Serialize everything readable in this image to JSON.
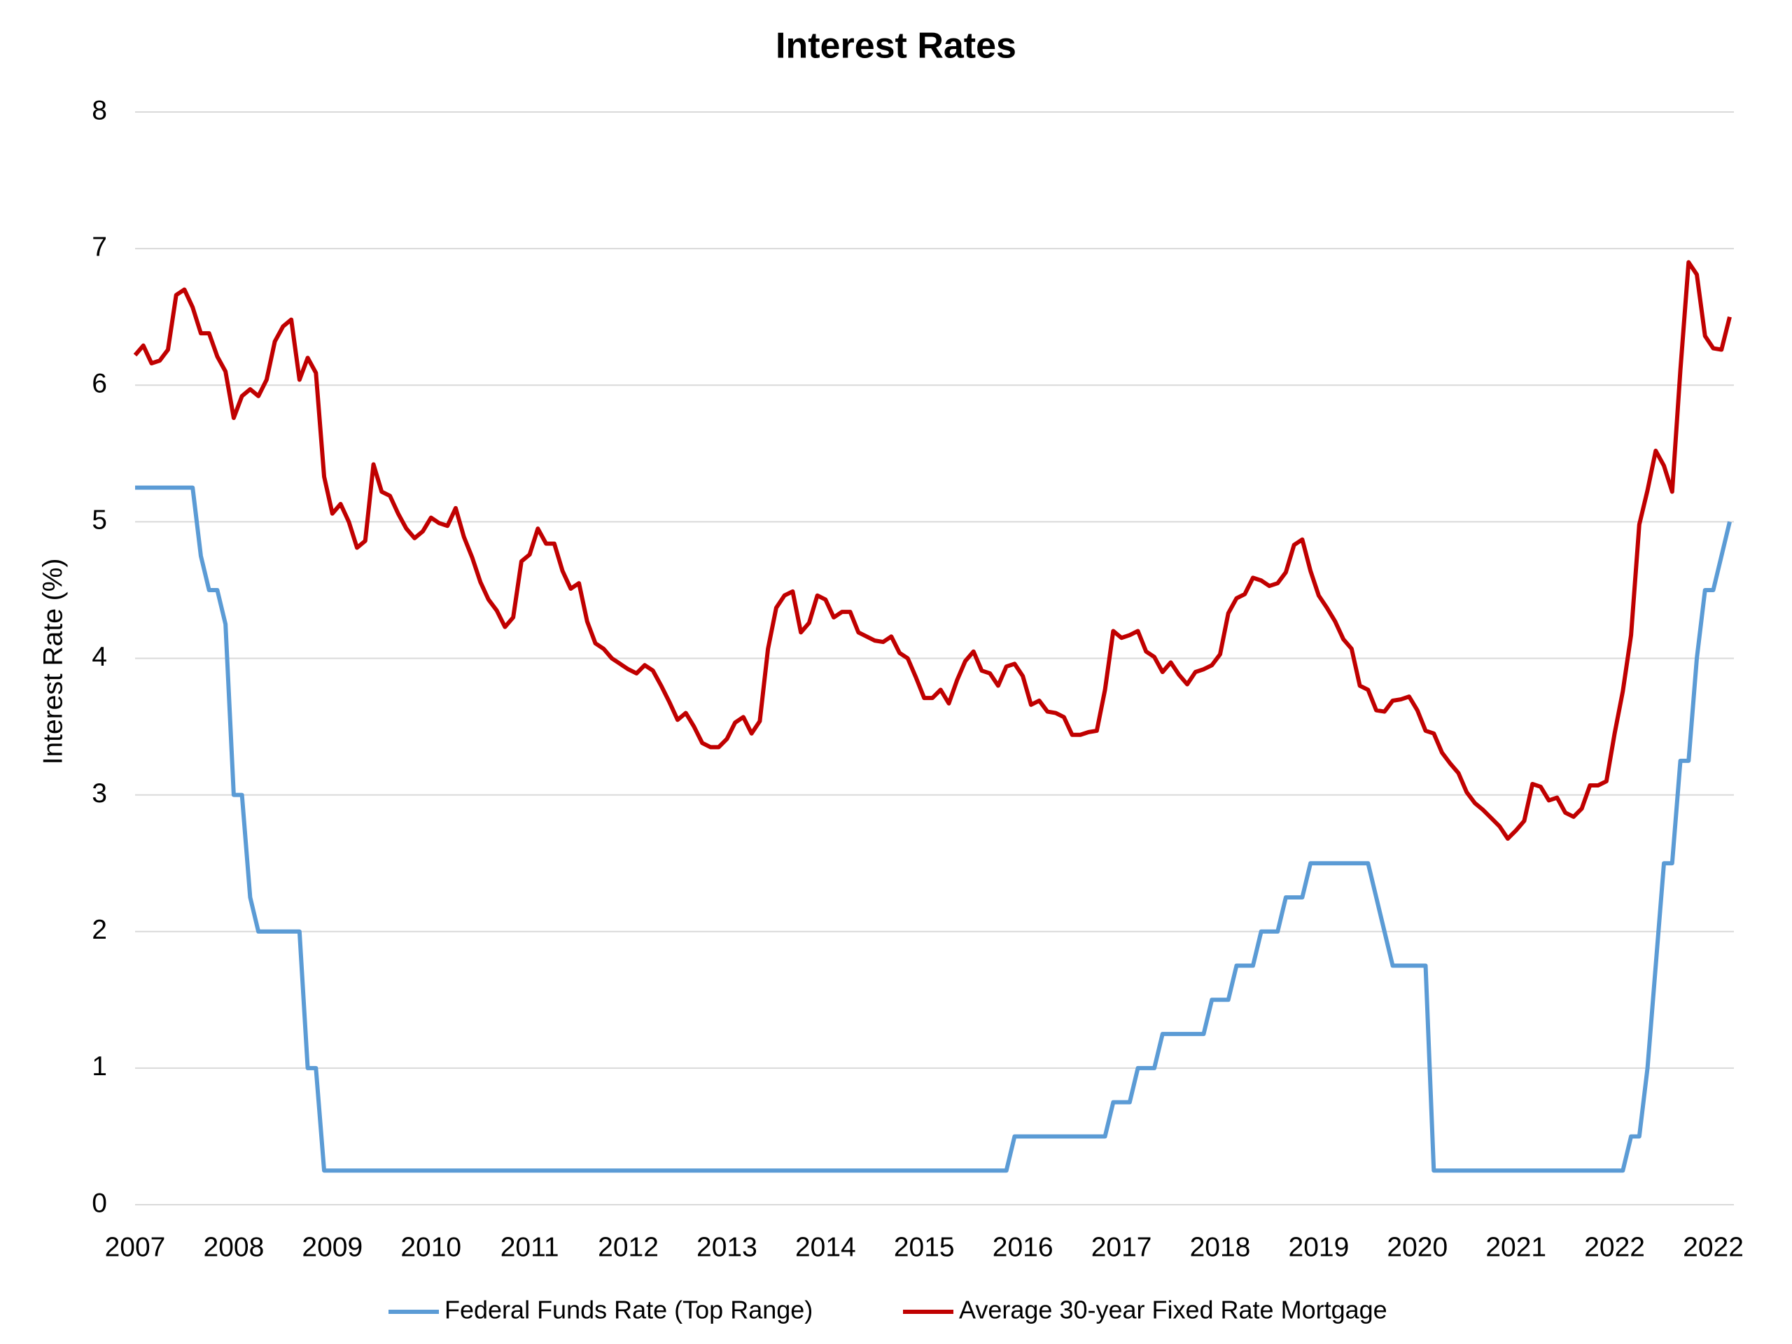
{
  "chart_data": {
    "type": "line",
    "title": "Interest Rates",
    "y_label": "Interest Rate (%)",
    "categories": [
      "2007",
      null,
      null,
      null,
      null,
      null,
      null,
      null,
      null,
      null,
      null,
      null,
      "2008",
      null,
      null,
      null,
      null,
      null,
      null,
      null,
      null,
      null,
      null,
      null,
      "2009",
      null,
      null,
      null,
      null,
      null,
      null,
      null,
      null,
      null,
      null,
      null,
      "2010",
      null,
      null,
      null,
      null,
      null,
      null,
      null,
      null,
      null,
      null,
      null,
      "2011",
      null,
      null,
      null,
      null,
      null,
      null,
      null,
      null,
      null,
      null,
      null,
      "2012",
      null,
      null,
      null,
      null,
      null,
      null,
      null,
      null,
      null,
      null,
      null,
      "2013",
      null,
      null,
      null,
      null,
      null,
      null,
      null,
      null,
      null,
      null,
      null,
      "2014",
      null,
      null,
      null,
      null,
      null,
      null,
      null,
      null,
      null,
      null,
      null,
      "2015",
      null,
      null,
      null,
      null,
      null,
      null,
      null,
      null,
      null,
      null,
      null,
      "2016",
      null,
      null,
      null,
      null,
      null,
      null,
      null,
      null,
      null,
      null,
      null,
      "2017",
      null,
      null,
      null,
      null,
      null,
      null,
      null,
      null,
      null,
      null,
      null,
      "2018",
      null,
      null,
      null,
      null,
      null,
      null,
      null,
      null,
      null,
      null,
      null,
      "2019",
      null,
      null,
      null,
      null,
      null,
      null,
      null,
      null,
      null,
      null,
      null,
      "2020",
      null,
      null,
      null,
      null,
      null,
      null,
      null,
      null,
      null,
      null,
      null,
      "2021",
      null,
      null,
      null,
      null,
      null,
      null,
      null,
      null,
      null,
      null,
      null,
      "2022",
      null,
      null,
      null,
      null,
      null,
      null,
      null,
      null,
      null,
      null,
      null,
      "2022",
      null,
      null
    ],
    "series": [
      {
        "name": "Federal Funds Rate (Top Range)",
        "color": "#5b9bd5",
        "values": [
          5.25,
          5.25,
          5.25,
          5.25,
          5.25,
          5.25,
          5.25,
          5.25,
          4.75,
          4.5,
          4.5,
          4.25,
          3.0,
          3.0,
          2.25,
          2.0,
          2.0,
          2.0,
          2.0,
          2.0,
          2.0,
          1.0,
          1.0,
          0.25,
          0.25,
          0.25,
          0.25,
          0.25,
          0.25,
          0.25,
          0.25,
          0.25,
          0.25,
          0.25,
          0.25,
          0.25,
          0.25,
          0.25,
          0.25,
          0.25,
          0.25,
          0.25,
          0.25,
          0.25,
          0.25,
          0.25,
          0.25,
          0.25,
          0.25,
          0.25,
          0.25,
          0.25,
          0.25,
          0.25,
          0.25,
          0.25,
          0.25,
          0.25,
          0.25,
          0.25,
          0.25,
          0.25,
          0.25,
          0.25,
          0.25,
          0.25,
          0.25,
          0.25,
          0.25,
          0.25,
          0.25,
          0.25,
          0.25,
          0.25,
          0.25,
          0.25,
          0.25,
          0.25,
          0.25,
          0.25,
          0.25,
          0.25,
          0.25,
          0.25,
          0.25,
          0.25,
          0.25,
          0.25,
          0.25,
          0.25,
          0.25,
          0.25,
          0.25,
          0.25,
          0.25,
          0.25,
          0.25,
          0.25,
          0.25,
          0.25,
          0.25,
          0.25,
          0.25,
          0.25,
          0.25,
          0.25,
          0.25,
          0.5,
          0.5,
          0.5,
          0.5,
          0.5,
          0.5,
          0.5,
          0.5,
          0.5,
          0.5,
          0.5,
          0.5,
          0.75,
          0.75,
          0.75,
          1.0,
          1.0,
          1.0,
          1.25,
          1.25,
          1.25,
          1.25,
          1.25,
          1.25,
          1.5,
          1.5,
          1.5,
          1.75,
          1.75,
          1.75,
          2.0,
          2.0,
          2.0,
          2.25,
          2.25,
          2.25,
          2.5,
          2.5,
          2.5,
          2.5,
          2.5,
          2.5,
          2.5,
          2.5,
          2.25,
          2.0,
          1.75,
          1.75,
          1.75,
          1.75,
          1.75,
          0.25,
          0.25,
          0.25,
          0.25,
          0.25,
          0.25,
          0.25,
          0.25,
          0.25,
          0.25,
          0.25,
          0.25,
          0.25,
          0.25,
          0.25,
          0.25,
          0.25,
          0.25,
          0.25,
          0.25,
          0.25,
          0.25,
          0.25,
          0.25,
          0.5,
          0.5,
          1.0,
          1.75,
          2.5,
          2.5,
          3.25,
          3.25,
          4.0,
          4.5,
          4.5,
          4.75,
          5.0
        ]
      },
      {
        "name": "Average 30-year Fixed Rate Mortgage",
        "color": "#c00000",
        "values": [
          6.22,
          6.29,
          6.16,
          6.18,
          6.26,
          6.66,
          6.7,
          6.57,
          6.38,
          6.38,
          6.21,
          6.1,
          5.76,
          5.92,
          5.97,
          5.92,
          6.04,
          6.32,
          6.43,
          6.48,
          6.04,
          6.2,
          6.09,
          5.33,
          5.06,
          5.13,
          5.0,
          4.81,
          4.86,
          5.42,
          5.22,
          5.19,
          5.06,
          4.95,
          4.88,
          4.93,
          5.03,
          4.99,
          4.97,
          5.1,
          4.89,
          4.74,
          4.56,
          4.43,
          4.35,
          4.23,
          4.3,
          4.71,
          4.76,
          4.95,
          4.84,
          4.84,
          4.64,
          4.51,
          4.55,
          4.27,
          4.11,
          4.07,
          4.0,
          3.96,
          3.92,
          3.89,
          3.95,
          3.91,
          3.8,
          3.68,
          3.55,
          3.6,
          3.5,
          3.38,
          3.35,
          3.35,
          3.41,
          3.53,
          3.57,
          3.45,
          3.54,
          4.07,
          4.37,
          4.46,
          4.49,
          4.19,
          4.26,
          4.46,
          4.43,
          4.3,
          4.34,
          4.34,
          4.19,
          4.16,
          4.13,
          4.12,
          4.16,
          4.04,
          4.0,
          3.86,
          3.71,
          3.71,
          3.77,
          3.67,
          3.84,
          3.98,
          4.05,
          3.91,
          3.89,
          3.8,
          3.94,
          3.96,
          3.87,
          3.66,
          3.69,
          3.61,
          3.6,
          3.57,
          3.44,
          3.44,
          3.46,
          3.47,
          3.77,
          4.2,
          4.15,
          4.17,
          4.2,
          4.05,
          4.01,
          3.9,
          3.97,
          3.88,
          3.81,
          3.9,
          3.92,
          3.95,
          4.03,
          4.33,
          4.44,
          4.47,
          4.59,
          4.57,
          4.53,
          4.55,
          4.63,
          4.83,
          4.87,
          4.64,
          4.46,
          4.37,
          4.27,
          4.14,
          4.07,
          3.8,
          3.77,
          3.62,
          3.61,
          3.69,
          3.7,
          3.72,
          3.62,
          3.47,
          3.45,
          3.31,
          3.23,
          3.16,
          3.02,
          2.94,
          2.89,
          2.83,
          2.77,
          2.68,
          2.74,
          2.81,
          3.08,
          3.06,
          2.96,
          2.98,
          2.87,
          2.84,
          2.9,
          3.07,
          3.07,
          3.1,
          3.45,
          3.76,
          4.17,
          4.98,
          5.23,
          5.52,
          5.41,
          5.22,
          6.11,
          6.9,
          6.81,
          6.36,
          6.27,
          6.26,
          6.5
        ]
      }
    ],
    "ylim": [
      0,
      8
    ],
    "yticks": [
      0,
      1,
      2,
      3,
      4,
      5,
      6,
      7,
      8
    ],
    "grid": true,
    "legend": "bottom"
  }
}
